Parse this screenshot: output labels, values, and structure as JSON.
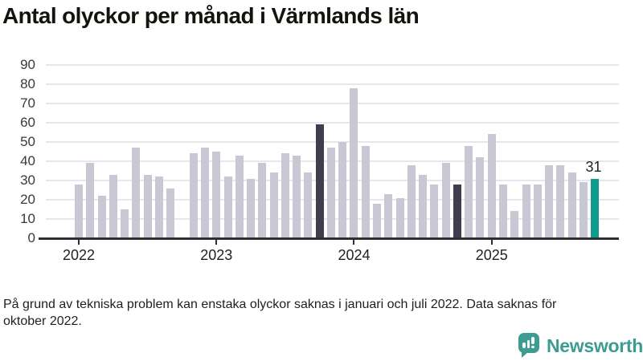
{
  "header": {
    "title": "Antal olyckor per månad i Värmlands län"
  },
  "footer": {
    "footnote": "På grund av tekniska problem kan enstaka olyckor saknas i januari och juli 2022. Data saknas för oktober 2022.",
    "brand": "Newsworthy"
  },
  "colors": {
    "bar_default": "#c9c7d4",
    "bar_dark": "#403e4e",
    "bar_accent": "#0d9b8e",
    "brand_teal": "#3c9c92",
    "gridline": "#e7e6ea",
    "axis": "#2e2e33",
    "title_text": "#14140f",
    "label_text": "#3a3a3a"
  },
  "chart_data": {
    "type": "bar",
    "title": "Antal olyckor per månad i Värmlands län",
    "xlabel": "",
    "ylabel": "",
    "ylim": [
      0,
      90
    ],
    "yticks": [
      0,
      10,
      20,
      30,
      40,
      50,
      60,
      70,
      80,
      90
    ],
    "grid": "horizontal",
    "legend": "none",
    "x_tick_labels": [
      "2022",
      "2023",
      "2024",
      "2025"
    ],
    "x_tick_month_indices": [
      0,
      12,
      24,
      36
    ],
    "months": [
      "2022-01",
      "2022-02",
      "2022-03",
      "2022-04",
      "2022-05",
      "2022-06",
      "2022-07",
      "2022-08",
      "2022-09",
      "2022-10",
      "2022-11",
      "2022-12",
      "2023-01",
      "2023-02",
      "2023-03",
      "2023-04",
      "2023-05",
      "2023-06",
      "2023-07",
      "2023-08",
      "2023-09",
      "2023-10",
      "2023-11",
      "2023-12",
      "2024-01",
      "2024-02",
      "2024-03",
      "2024-04",
      "2024-05",
      "2024-06",
      "2024-07",
      "2024-08",
      "2024-09",
      "2024-10",
      "2024-11",
      "2024-12",
      "2025-01",
      "2025-02",
      "2025-03",
      "2025-04",
      "2025-05",
      "2025-06",
      "2025-07",
      "2025-08",
      "2025-09",
      "2025-10"
    ],
    "series": [
      {
        "name": "Antal olyckor",
        "values": [
          28,
          39,
          22,
          33,
          15,
          47,
          33,
          32,
          26,
          null,
          44,
          47,
          45,
          32,
          43,
          31,
          39,
          34,
          44,
          43,
          34,
          59,
          47,
          50,
          78,
          48,
          18,
          23,
          21,
          38,
          33,
          28,
          39,
          28,
          48,
          42,
          54,
          28,
          14,
          28,
          28,
          38,
          38,
          34,
          29,
          31
        ]
      }
    ],
    "missing_months": [
      "2022-10"
    ],
    "highlight_dark_months": [
      "2023-10",
      "2024-10"
    ],
    "highlight_accent_month": "2025-10",
    "last_value_label": "31"
  }
}
